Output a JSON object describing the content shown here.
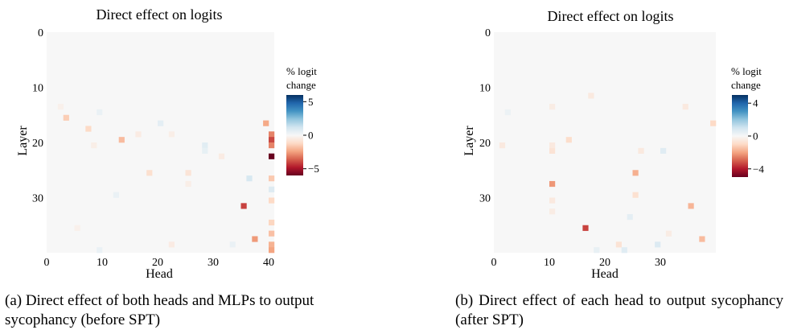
{
  "chart_data": [
    {
      "type": "heatmap",
      "title": "Direct effect on logits",
      "xlabel": "Head",
      "ylabel": "Layer",
      "rows": 40,
      "cols": 41,
      "x_ticks": [
        0,
        10,
        20,
        30,
        40
      ],
      "y_ticks": [
        0,
        10,
        20,
        30
      ],
      "colorbar": {
        "title_lines": [
          "% logit",
          "change"
        ],
        "range": [
          -6,
          6
        ],
        "ticks": [
          5,
          0,
          -5
        ],
        "tick_labels": [
          "5",
          "0",
          "−5"
        ]
      },
      "background_value": 0,
      "cells": [
        {
          "layer": 15,
          "head": 3,
          "value": -1.5
        },
        {
          "layer": 17,
          "head": 7,
          "value": -1.2
        },
        {
          "layer": 19,
          "head": 13,
          "value": -1.9
        },
        {
          "layer": 25,
          "head": 18,
          "value": -1.0
        },
        {
          "layer": 25,
          "head": 25,
          "value": -0.8
        },
        {
          "layer": 31,
          "head": 35,
          "value": -4.1
        },
        {
          "layer": 37,
          "head": 37,
          "value": -2.6
        },
        {
          "layer": 16,
          "head": 39,
          "value": -2.3
        },
        {
          "layer": 18,
          "head": 40,
          "value": -3.0
        },
        {
          "layer": 19,
          "head": 40,
          "value": -4.0
        },
        {
          "layer": 20,
          "head": 40,
          "value": -3.0
        },
        {
          "layer": 22,
          "head": 40,
          "value": -6.0
        },
        {
          "layer": 26,
          "head": 40,
          "value": -1.6
        },
        {
          "layer": 28,
          "head": 40,
          "value": 0.8
        },
        {
          "layer": 30,
          "head": 40,
          "value": -1.2
        },
        {
          "layer": 34,
          "head": 40,
          "value": -1.3
        },
        {
          "layer": 36,
          "head": 40,
          "value": -1.8
        },
        {
          "layer": 38,
          "head": 40,
          "value": -2.1
        },
        {
          "layer": 39,
          "head": 40,
          "value": -2.4
        },
        {
          "layer": 20,
          "head": 28,
          "value": 0.7
        },
        {
          "layer": 21,
          "head": 28,
          "value": 0.5
        },
        {
          "layer": 26,
          "head": 36,
          "value": 1.0
        },
        {
          "layer": 16,
          "head": 20,
          "value": 0.6
        },
        {
          "layer": 14,
          "head": 9,
          "value": 0.4
        },
        {
          "layer": 18,
          "head": 16,
          "value": -0.5
        },
        {
          "layer": 18,
          "head": 22,
          "value": -0.4
        },
        {
          "layer": 20,
          "head": 8,
          "value": -0.4
        },
        {
          "layer": 22,
          "head": 31,
          "value": -0.5
        },
        {
          "layer": 27,
          "head": 25,
          "value": -0.4
        },
        {
          "layer": 35,
          "head": 5,
          "value": -0.3
        },
        {
          "layer": 38,
          "head": 22,
          "value": -0.5
        },
        {
          "layer": 38,
          "head": 33,
          "value": 0.4
        },
        {
          "layer": 39,
          "head": 9,
          "value": 0.4
        },
        {
          "layer": 13,
          "head": 2,
          "value": -0.3
        },
        {
          "layer": 29,
          "head": 12,
          "value": 0.4
        }
      ]
    },
    {
      "type": "heatmap",
      "title": "Direct effect on logits",
      "xlabel": "Head",
      "ylabel": "Layer",
      "rows": 40,
      "cols": 40,
      "x_ticks": [
        0,
        10,
        20,
        30
      ],
      "y_ticks": [
        0,
        10,
        20,
        30
      ],
      "colorbar": {
        "title_lines": [
          "% logit",
          "change"
        ],
        "range": [
          -5,
          5
        ],
        "ticks": [
          4,
          0,
          -4
        ],
        "tick_labels": [
          "4",
          "0",
          "−4"
        ]
      },
      "background_value": 0,
      "cells": [
        {
          "layer": 27,
          "head": 10,
          "value": -2.2
        },
        {
          "layer": 35,
          "head": 16,
          "value": -3.4
        },
        {
          "layer": 25,
          "head": 25,
          "value": -1.8
        },
        {
          "layer": 31,
          "head": 35,
          "value": -1.7
        },
        {
          "layer": 37,
          "head": 37,
          "value": -1.6
        },
        {
          "layer": 16,
          "head": 39,
          "value": -1.0
        },
        {
          "layer": 19,
          "head": 13,
          "value": -0.9
        },
        {
          "layer": 21,
          "head": 10,
          "value": -0.7
        },
        {
          "layer": 20,
          "head": 10,
          "value": -0.5
        },
        {
          "layer": 20,
          "head": 1,
          "value": -0.5
        },
        {
          "layer": 29,
          "head": 25,
          "value": -0.8
        },
        {
          "layer": 21,
          "head": 26,
          "value": -0.5
        },
        {
          "layer": 30,
          "head": 10,
          "value": -0.5
        },
        {
          "layer": 32,
          "head": 10,
          "value": -0.4
        },
        {
          "layer": 38,
          "head": 22,
          "value": -0.7
        },
        {
          "layer": 11,
          "head": 17,
          "value": -0.5
        },
        {
          "layer": 13,
          "head": 10,
          "value": -0.4
        },
        {
          "layer": 13,
          "head": 34,
          "value": -0.5
        },
        {
          "layer": 21,
          "head": 30,
          "value": 0.6
        },
        {
          "layer": 38,
          "head": 29,
          "value": 0.7
        },
        {
          "layer": 33,
          "head": 24,
          "value": 0.5
        },
        {
          "layer": 39,
          "head": 23,
          "value": 0.6
        },
        {
          "layer": 39,
          "head": 18,
          "value": 0.4
        },
        {
          "layer": 14,
          "head": 2,
          "value": 0.3
        },
        {
          "layer": 36,
          "head": 31,
          "value": -0.4
        }
      ]
    }
  ],
  "captions": {
    "a": "(a) Direct effect of both heads and MLPs to output sycophancy (before SPT)",
    "b": "(b) Direct effect of each head to output sycophancy (after SPT)"
  }
}
